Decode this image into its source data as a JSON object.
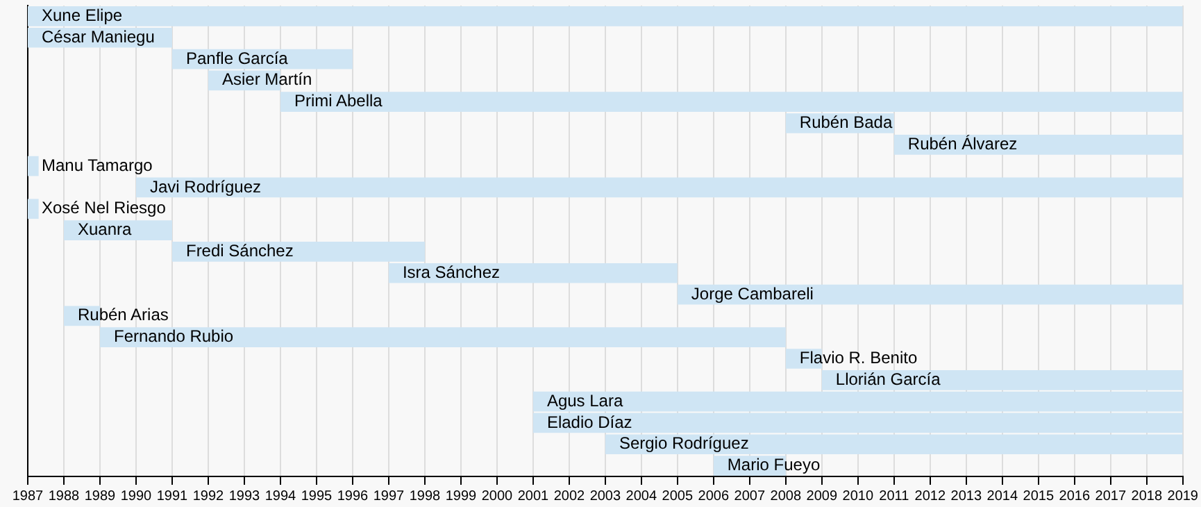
{
  "chart_data": {
    "type": "bar",
    "orientation": "horizontal",
    "tick_labels": "x",
    "grid": "x",
    "color": "#cfe5f4",
    "categories": [
      "Xune Elipe",
      "César Maniegu",
      "Panfle García",
      "Asier Martín",
      "Primi Abella",
      "Rubén Bada",
      "Rubén Álvarez",
      "Manu Tamargo",
      "Javi Rodríguez",
      "Xosé Nel Riesgo",
      "Xuanra",
      "Fredi Sánchez",
      "Isra Sánchez",
      "Jorge Cambareli",
      "Rubén Arias",
      "Fernando Rubio",
      "Flavio R. Benito",
      "Llorián García",
      "Agus Lara",
      "Eladio Díaz",
      "Sergio Rodríguez",
      "Mario Fueyo"
    ],
    "base": [
      1987,
      1987,
      1991,
      1992,
      1994,
      2008,
      2011,
      1987,
      1990,
      1987,
      1988,
      1991,
      1997,
      2005,
      1988,
      1989,
      2008,
      2009,
      2001,
      2001,
      2003,
      2006
    ],
    "values": [
      32,
      4,
      5,
      2,
      25,
      3,
      8,
      0.3,
      29,
      0.3,
      3,
      7,
      8,
      14,
      1,
      19,
      1,
      10,
      18,
      18,
      16,
      2
    ],
    "xlim": [
      1987,
      2019
    ],
    "xticks": [
      1987,
      1988,
      1989,
      1990,
      1991,
      1992,
      1993,
      1994,
      1995,
      1996,
      1997,
      1998,
      1999,
      2000,
      2001,
      2002,
      2003,
      2004,
      2005,
      2006,
      2007,
      2008,
      2009,
      2010,
      2011,
      2012,
      2013,
      2014,
      2015,
      2016,
      2017,
      2018,
      2019
    ]
  }
}
